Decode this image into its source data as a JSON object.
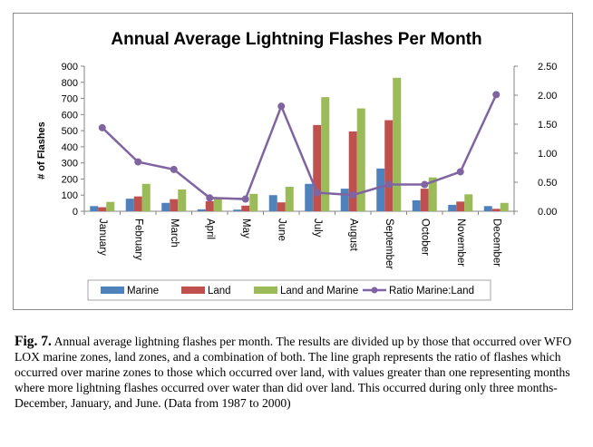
{
  "chart_data": {
    "type": "bar",
    "title": "Annual Average Lightning Flashes Per Month",
    "ylabel": "# of Flashes",
    "ylim": [
      0,
      900
    ],
    "yticks": [
      0,
      100,
      200,
      300,
      400,
      500,
      600,
      700,
      800,
      900
    ],
    "y2lim": [
      0,
      2.5
    ],
    "y2ticks": [
      "0.00",
      "0.50",
      "1.00",
      "1.50",
      "2.00",
      "2.50"
    ],
    "categories": [
      "January",
      "February",
      "March",
      "April",
      "May",
      "June",
      "July",
      "August",
      "September",
      "October",
      "November",
      "December"
    ],
    "series": [
      {
        "name": "Marine",
        "type": "bar",
        "color": "#4f81bd",
        "values": [
          32,
          78,
          52,
          12,
          10,
          100,
          170,
          140,
          265,
          68,
          40,
          32
        ]
      },
      {
        "name": "Land",
        "type": "bar",
        "color": "#c0504d",
        "values": [
          25,
          92,
          75,
          62,
          35,
          55,
          535,
          495,
          565,
          140,
          60,
          15
        ]
      },
      {
        "name": "Land and Marine",
        "type": "bar",
        "color": "#9bbb59",
        "values": [
          58,
          170,
          135,
          80,
          108,
          152,
          708,
          638,
          828,
          210,
          105,
          52
        ]
      },
      {
        "name": "Ratio Marine:Land",
        "type": "line",
        "axis": "right",
        "color": "#8064a2",
        "values": [
          1.44,
          0.85,
          0.72,
          0.23,
          0.21,
          1.81,
          0.32,
          0.28,
          0.46,
          0.46,
          0.68,
          2.01
        ]
      }
    ],
    "legend": "bottom",
    "grid": false
  },
  "caption": {
    "lead": "Fig. 7.",
    "text": "Annual average lightning flashes per month. The results are divided up by those that occurred over WFO LOX marine zones, land zones, and a combination of both. The line graph represents the ratio of flashes which occurred over marine zones to those which occurred over land, with values greater than one representing months where more lightning flashes occurred over water than did over land. This occurred during only three months- December, January, and June. (Data from 1987 to 2000)"
  }
}
